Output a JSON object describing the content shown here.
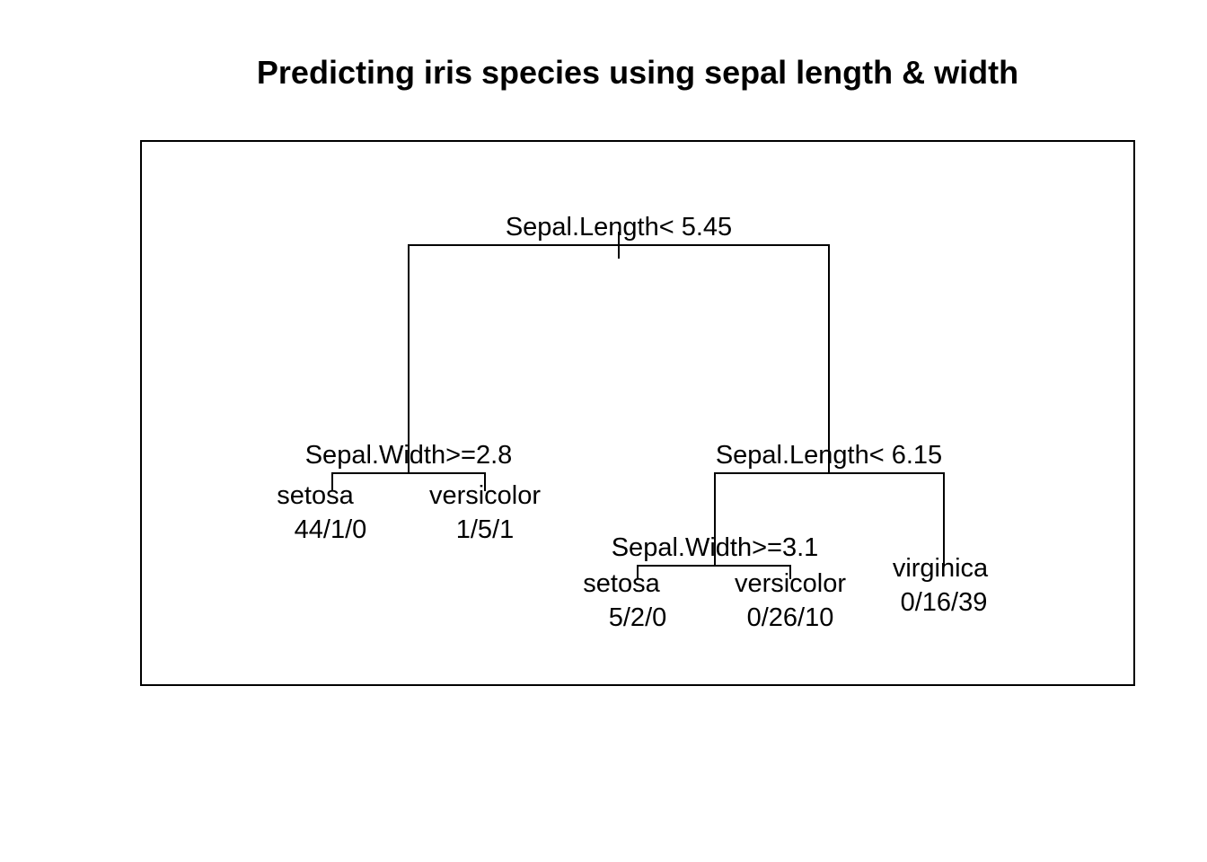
{
  "title": "Predicting iris species using sepal length & width",
  "tree": {
    "type": "decision-tree",
    "splits": [
      {
        "id": "root",
        "label": "Sepal.Length< 5.45"
      },
      {
        "id": "left",
        "label": "Sepal.Width>=2.8"
      },
      {
        "id": "right",
        "label": "Sepal.Length< 6.15"
      },
      {
        "id": "right-left",
        "label": "Sepal.Width>=3.1"
      }
    ],
    "leaves": [
      {
        "id": "leaf-1",
        "class": "setosa",
        "counts": "44/1/0"
      },
      {
        "id": "leaf-2",
        "class": "versicolor",
        "counts": "1/5/1"
      },
      {
        "id": "leaf-3",
        "class": "setosa",
        "counts": "5/2/0"
      },
      {
        "id": "leaf-4",
        "class": "versicolor",
        "counts": "0/26/10"
      },
      {
        "id": "leaf-5",
        "class": "virginica",
        "counts": "0/16/39"
      }
    ]
  }
}
